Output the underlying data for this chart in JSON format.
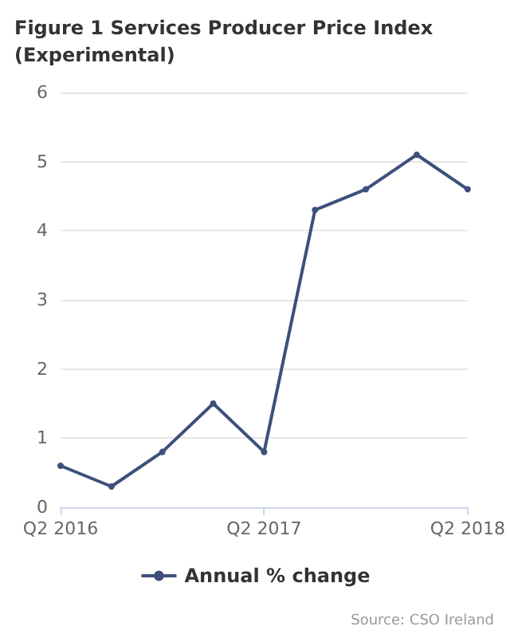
{
  "chart_data": {
    "type": "line",
    "title": "Figure 1 Services Producer Price Index (Experimental)",
    "categories": [
      "Q2 2016",
      null,
      null,
      null,
      "Q2 2017",
      null,
      null,
      null,
      "Q2 2018"
    ],
    "series": [
      {
        "name": "Annual % change",
        "color": "#3d4f7c",
        "values": [
          0.6,
          0.3,
          0.8,
          1.5,
          0.8,
          4.3,
          4.6,
          5.1,
          4.6
        ]
      }
    ],
    "ylim": [
      0,
      6
    ],
    "yticks": [
      0,
      1,
      2,
      3,
      4,
      5,
      6
    ],
    "grid": "y",
    "legend": "bottom",
    "marker": "circle",
    "annotations": [
      "Source: CSO Ireland"
    ]
  }
}
